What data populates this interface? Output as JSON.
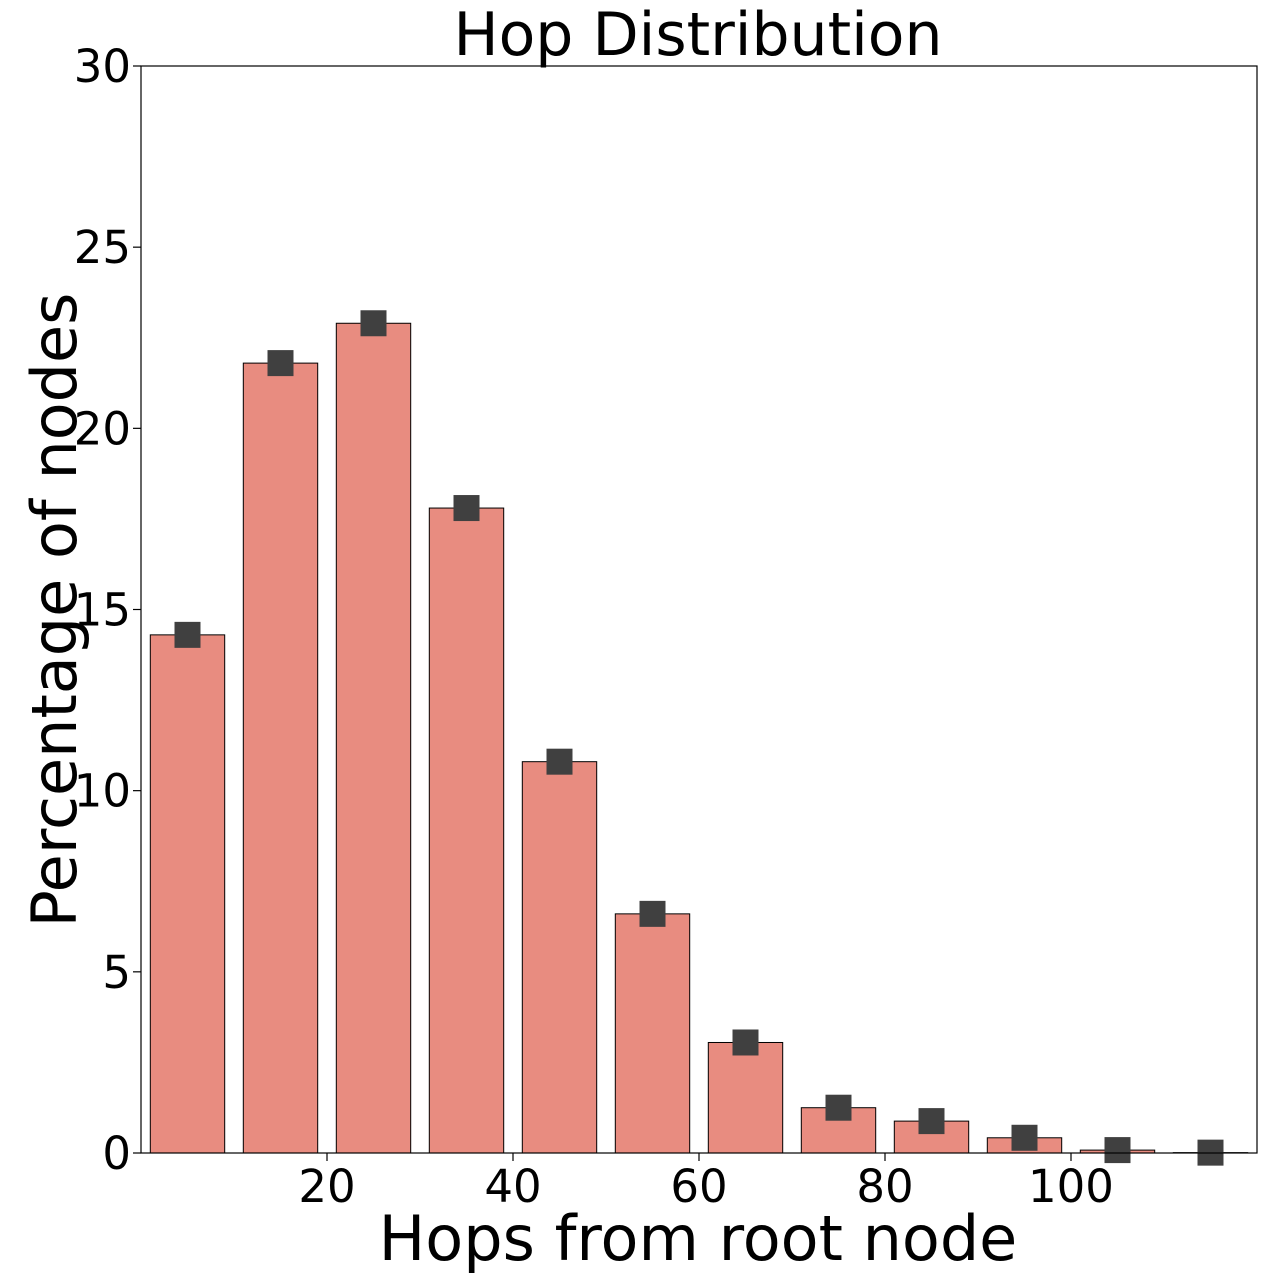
{
  "chart_data": {
    "type": "bar",
    "title": "Hop Distribution",
    "xlabel": "Hops from root node",
    "ylabel": "Percentage of nodes",
    "x": [
      5,
      15,
      25,
      35,
      45,
      55,
      65,
      75,
      85,
      95,
      105,
      115
    ],
    "bar_width": 8,
    "values": [
      14.3,
      21.8,
      22.9,
      17.8,
      10.8,
      6.6,
      3.05,
      1.25,
      0.88,
      0.42,
      0.08,
      0.01
    ],
    "markers": [
      14.3,
      21.8,
      22.9,
      17.8,
      10.8,
      6.6,
      3.05,
      1.25,
      0.88,
      0.42,
      0.08,
      0.01
    ],
    "xlim": [
      0,
      120
    ],
    "ylim": [
      0,
      30
    ],
    "xticks": [
      20,
      40,
      60,
      80,
      100
    ],
    "yticks": [
      0,
      5,
      10,
      15,
      20,
      25,
      30
    ],
    "grid": false,
    "colors": {
      "bar_fill": "#e88c80",
      "bar_edge": "#000000",
      "marker": "#404040",
      "axis": "#000000"
    }
  }
}
